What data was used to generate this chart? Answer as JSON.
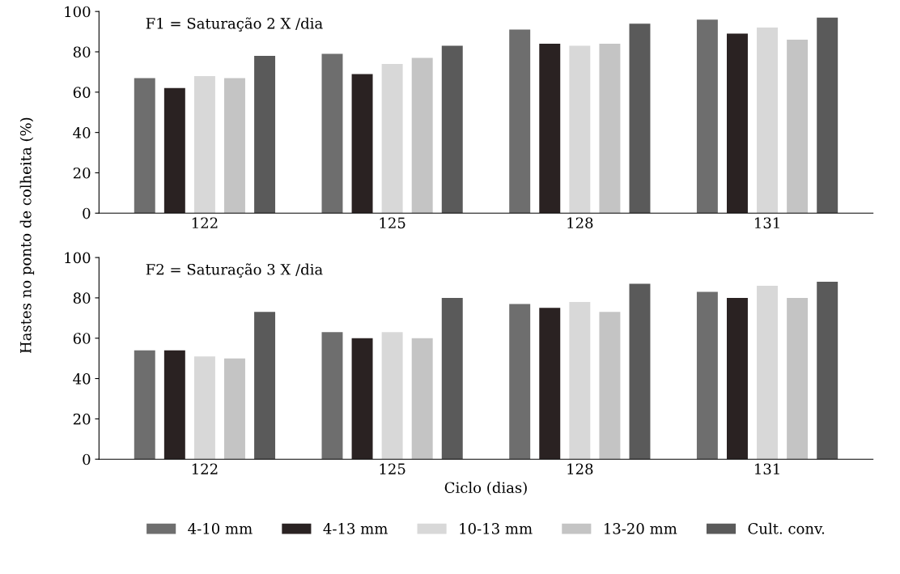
{
  "chart_data": [
    {
      "type": "bar",
      "title": "F1 = Saturação 2 X /dia",
      "ylabel": "Hastes no ponto de colheita (%)",
      "categories": [
        "122",
        "125",
        "128",
        "131"
      ],
      "ylim": [
        0,
        100
      ],
      "yticks": [
        0,
        20,
        40,
        60,
        80,
        100
      ],
      "grid": false,
      "legend": false,
      "series": [
        {
          "color": "#6e6e6e",
          "values": [
            67,
            79,
            91,
            96
          ]
        },
        {
          "color": "#2a2222",
          "values": [
            62,
            69,
            84,
            89
          ]
        },
        {
          "color": "#d8d8d8",
          "values": [
            68,
            74,
            83,
            92
          ]
        },
        {
          "color": "#c4c4c4",
          "values": [
            67,
            77,
            84,
            86
          ]
        },
        {
          "color": "#5a5a5a",
          "values": [
            78,
            83,
            94,
            97
          ]
        }
      ]
    },
    {
      "type": "bar",
      "title": "F2 = Saturação 3 X /dia",
      "xlabel": "Ciclo (dias)",
      "categories": [
        "122",
        "125",
        "128",
        "131"
      ],
      "ylim": [
        0,
        100
      ],
      "yticks": [
        0,
        20,
        40,
        60,
        80,
        100
      ],
      "grid": false,
      "legend": "bottom",
      "series": [
        {
          "name": "4-10 mm",
          "color": "#6e6e6e",
          "values": [
            54,
            63,
            77,
            83
          ]
        },
        {
          "name": "4-13 mm",
          "color": "#2a2222",
          "values": [
            54,
            60,
            75,
            80
          ]
        },
        {
          "name": "10-13 mm",
          "color": "#d8d8d8",
          "values": [
            51,
            63,
            78,
            86
          ]
        },
        {
          "name": "13-20 mm",
          "color": "#c4c4c4",
          "values": [
            50,
            60,
            73,
            80
          ]
        },
        {
          "name": "Cult. conv.",
          "color": "#5a5a5a",
          "values": [
            73,
            80,
            87,
            88
          ]
        }
      ]
    }
  ]
}
